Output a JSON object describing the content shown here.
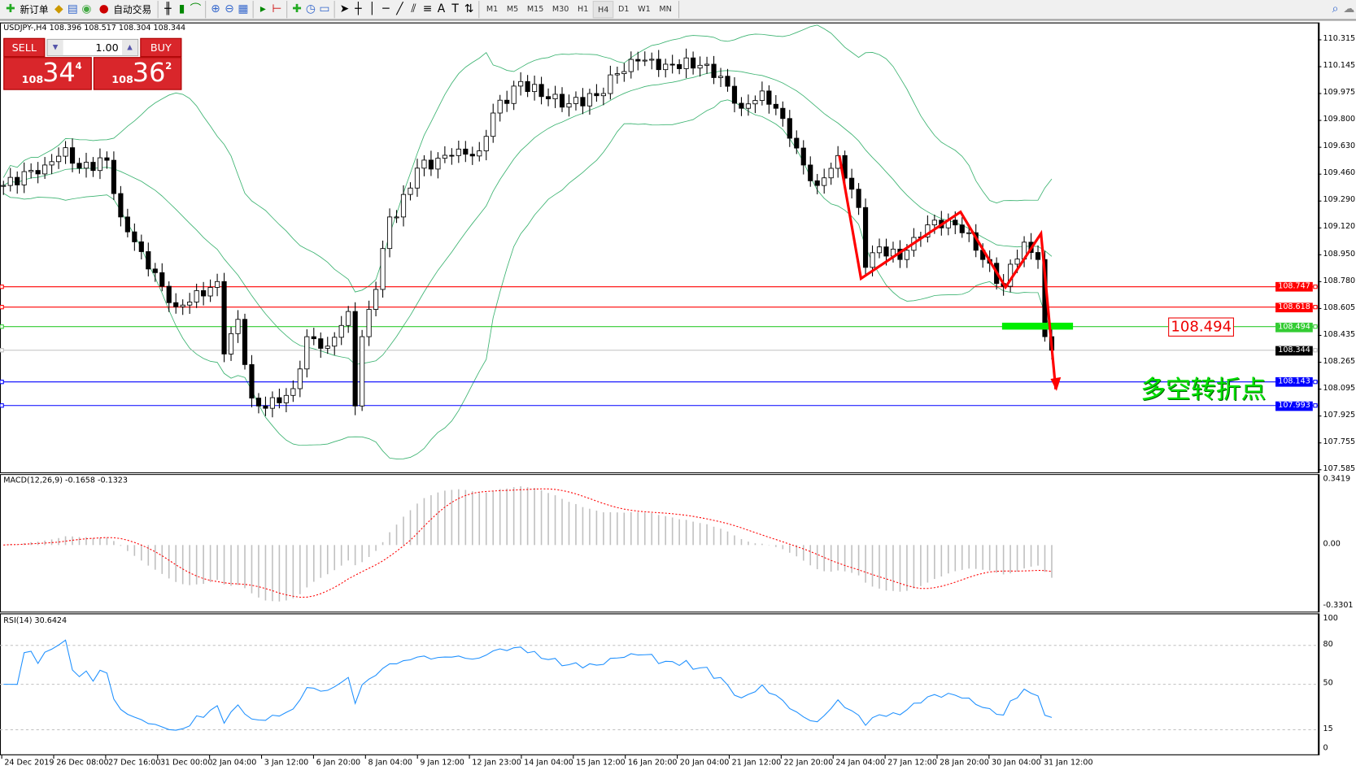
{
  "toolbar": {
    "new_order": "新订单",
    "auto_trading": "自动交易",
    "icons": [
      "new-order-icon",
      "market-watch-icon",
      "navigator-icon",
      "signals-icon",
      "auto-trading-icon",
      "bar-chart-icon",
      "candlestick-icon",
      "line-chart-icon",
      "zoom-in-icon",
      "zoom-out-icon",
      "tile-windows-icon",
      "autoscroll-icon",
      "chart-shift-icon",
      "indicators-icon",
      "periods-icon",
      "templates-icon",
      "cursor-icon",
      "crosshair-icon",
      "vertical-line-icon",
      "horizontal-line-icon",
      "trendline-icon",
      "equidistant-channel-icon",
      "fibonacci-icon",
      "text-icon",
      "text-label-icon",
      "arrows-icon"
    ],
    "timeframes": [
      "M1",
      "M5",
      "M15",
      "M30",
      "H1",
      "H4",
      "D1",
      "W1",
      "MN"
    ],
    "active_timeframe": "H4"
  },
  "chart": {
    "header": "USDJPY-,H4  108.396 108.517 108.304 108.344",
    "trade_panel": {
      "sell": "SELL",
      "buy": "BUY",
      "lot": "1.00",
      "sell_big": "108",
      "sell_pips": "34",
      "sell_frac": "4",
      "buy_big": "108",
      "buy_pips": "36",
      "buy_frac": "2"
    },
    "annotation": "多空转折点",
    "price_box": "108.494"
  },
  "price_axis": [
    "110.315",
    "110.145",
    "109.975",
    "109.800",
    "109.630",
    "109.460",
    "109.290",
    "109.120",
    "108.950",
    "108.780",
    "108.605",
    "108.435",
    "108.265",
    "108.095",
    "107.925",
    "107.755",
    "107.585"
  ],
  "levels": [
    {
      "price": "108.747",
      "color": "#ff0000"
    },
    {
      "price": "108.618",
      "color": "#ff0000"
    },
    {
      "price": "108.494",
      "color": "#33cc33"
    },
    {
      "price": "108.344",
      "color": "#000000"
    },
    {
      "price": "108.143",
      "color": "#0000ff"
    },
    {
      "price": "107.993",
      "color": "#0000ff"
    }
  ],
  "macd": {
    "label": "MACD(12,26,9) -0.1658 -0.1323",
    "axis": [
      "0.3419",
      "0.00",
      "-0.3301"
    ]
  },
  "rsi": {
    "label": "RSI(14) 30.6424",
    "axis": [
      "100",
      "80",
      "50",
      "15",
      "0"
    ]
  },
  "time_axis": [
    "24 Dec 2019",
    "26 Dec 08:00",
    "27 Dec 16:00",
    "31 Dec 00:00",
    "2 Jan 04:00",
    "3 Jan 12:00",
    "6 Jan 20:00",
    "8 Jan 04:00",
    "9 Jan 12:00",
    "12 Jan 23:00",
    "14 Jan 04:00",
    "15 Jan 12:00",
    "16 Jan 20:00",
    "20 Jan 04:00",
    "21 Jan 12:00",
    "22 Jan 20:00",
    "24 Jan 04:00",
    "27 Jan 12:00",
    "28 Jan 20:00",
    "30 Jan 04:00",
    "31 Jan 12:00"
  ],
  "chart_data": {
    "type": "candlestick",
    "symbol": "USDJPY",
    "timeframe": "H4",
    "ylim": [
      107.585,
      110.315
    ],
    "close_keypoints": [
      [
        0,
        109.39
      ],
      [
        6,
        109.52
      ],
      [
        9,
        109.63
      ],
      [
        11,
        109.5
      ],
      [
        15,
        109.55
      ],
      [
        17,
        109.19
      ],
      [
        20,
        108.97
      ],
      [
        23,
        108.75
      ],
      [
        25,
        108.62
      ],
      [
        27,
        108.65
      ],
      [
        31,
        108.78
      ],
      [
        32,
        108.32
      ],
      [
        34,
        108.54
      ],
      [
        36,
        108.04
      ],
      [
        37,
        107.99
      ],
      [
        40,
        108.01
      ],
      [
        42,
        108.1
      ],
      [
        44,
        108.43
      ],
      [
        47,
        108.37
      ],
      [
        50,
        108.59
      ],
      [
        51,
        107.99
      ],
      [
        52,
        108.43
      ],
      [
        54,
        108.73
      ],
      [
        56,
        109.19
      ],
      [
        57,
        109.19
      ],
      [
        60,
        109.5
      ],
      [
        65,
        109.58
      ],
      [
        69,
        109.61
      ],
      [
        71,
        109.85
      ],
      [
        75,
        110.05
      ],
      [
        79,
        109.94
      ],
      [
        82,
        109.91
      ],
      [
        86,
        109.96
      ],
      [
        89,
        110.1
      ],
      [
        92,
        110.18
      ],
      [
        96,
        110.16
      ],
      [
        102,
        110.16
      ],
      [
        105,
        110.02
      ],
      [
        107,
        109.88
      ],
      [
        110,
        109.99
      ],
      [
        112,
        109.88
      ],
      [
        114,
        109.69
      ],
      [
        116,
        109.52
      ],
      [
        118,
        109.39
      ],
      [
        121,
        109.58
      ],
      [
        124,
        109.25
      ],
      [
        125,
        108.87
      ],
      [
        127,
        109.0
      ],
      [
        130,
        108.92
      ],
      [
        132,
        109.06
      ],
      [
        134,
        109.14
      ],
      [
        137,
        109.17
      ],
      [
        140,
        109.09
      ],
      [
        142,
        108.92
      ],
      [
        145,
        108.75
      ],
      [
        146,
        108.89
      ],
      [
        148,
        109.03
      ],
      [
        150,
        108.92
      ],
      [
        151,
        108.43
      ],
      [
        152,
        108.344
      ]
    ]
  }
}
